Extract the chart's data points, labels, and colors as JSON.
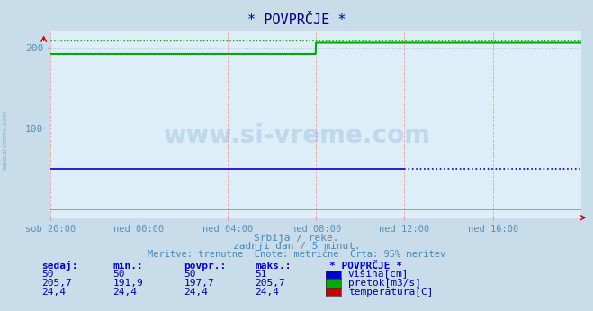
{
  "title": "* POVPRČJE *",
  "bg_color": "#c8dcea",
  "plot_bg_color": "#ddeef8",
  "grid_color_h": "#b0b0e0",
  "grid_color_v": "#f0a0a0",
  "xlabel_color": "#5090c0",
  "title_color": "#000080",
  "x_tick_labels": [
    "sob 20:00",
    "ned 00:00",
    "ned 04:00",
    "ned 08:00",
    "ned 12:00",
    "ned 16:00"
  ],
  "x_tick_positions": [
    0,
    240,
    480,
    720,
    960,
    1200
  ],
  "ylim": [
    -10,
    220
  ],
  "yticks": [
    100,
    200
  ],
  "total_points": 1440,
  "visina_value": 50,
  "visina_dotted_start": 960,
  "pretok_start": 191.9,
  "pretok_jump_point": 720,
  "pretok_end": 205.7,
  "pretok_dotted_value": 209,
  "temperatura_value": 0.5,
  "line_visina_color": "#0000cc",
  "line_pretok_color": "#00aa00",
  "line_temp_color": "#cc0000",
  "dotted_color": "#00aa00",
  "footer_line1": "Srbija / reke.",
  "footer_line2": "zadnji dan / 5 minut.",
  "footer_line3": "Meritve: trenutne  Enote: metrične  Črta: 95% meritev",
  "footer_color": "#4488bb",
  "table_header_color": "#0000cc",
  "table_value_color": "#000099",
  "watermark": "www.si-vreme.com",
  "sidebar_text": "www.si-vreme.com",
  "arrow_color": "#cc0000",
  "box_visina_color": "#0000cc",
  "box_pretok_color": "#00aa00",
  "box_temp_color": "#cc0000"
}
